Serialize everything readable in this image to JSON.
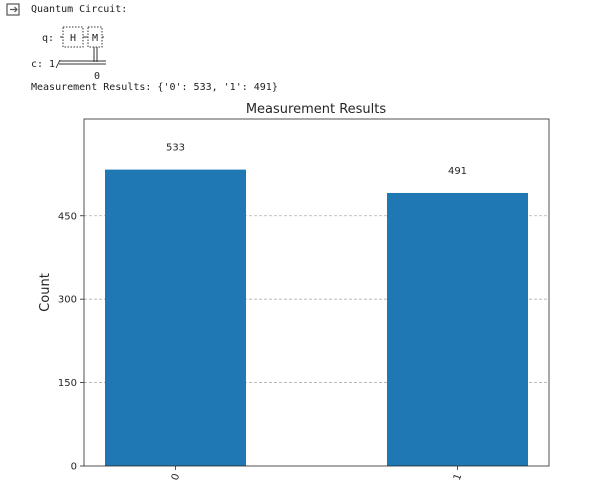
{
  "output": {
    "header": "Quantum Circuit:",
    "circuit": {
      "qubit_label": "q:",
      "gate_h": "H",
      "gate_m": "M",
      "clbit_label": "c: 1/",
      "clbit_index": "0"
    },
    "results_line": "Measurement Results: {'0': 533, '1': 491}"
  },
  "chart_data": {
    "type": "bar",
    "title": "Measurement Results",
    "xlabel": "",
    "ylabel": "Count",
    "categories": [
      "0",
      "1"
    ],
    "values": [
      533,
      491
    ],
    "data_labels": [
      "533",
      "491"
    ],
    "ylim": [
      0,
      624
    ],
    "yticks": [
      0,
      150,
      300,
      450
    ],
    "grid": "y-dashed",
    "bar_color": "#1f77b4"
  }
}
